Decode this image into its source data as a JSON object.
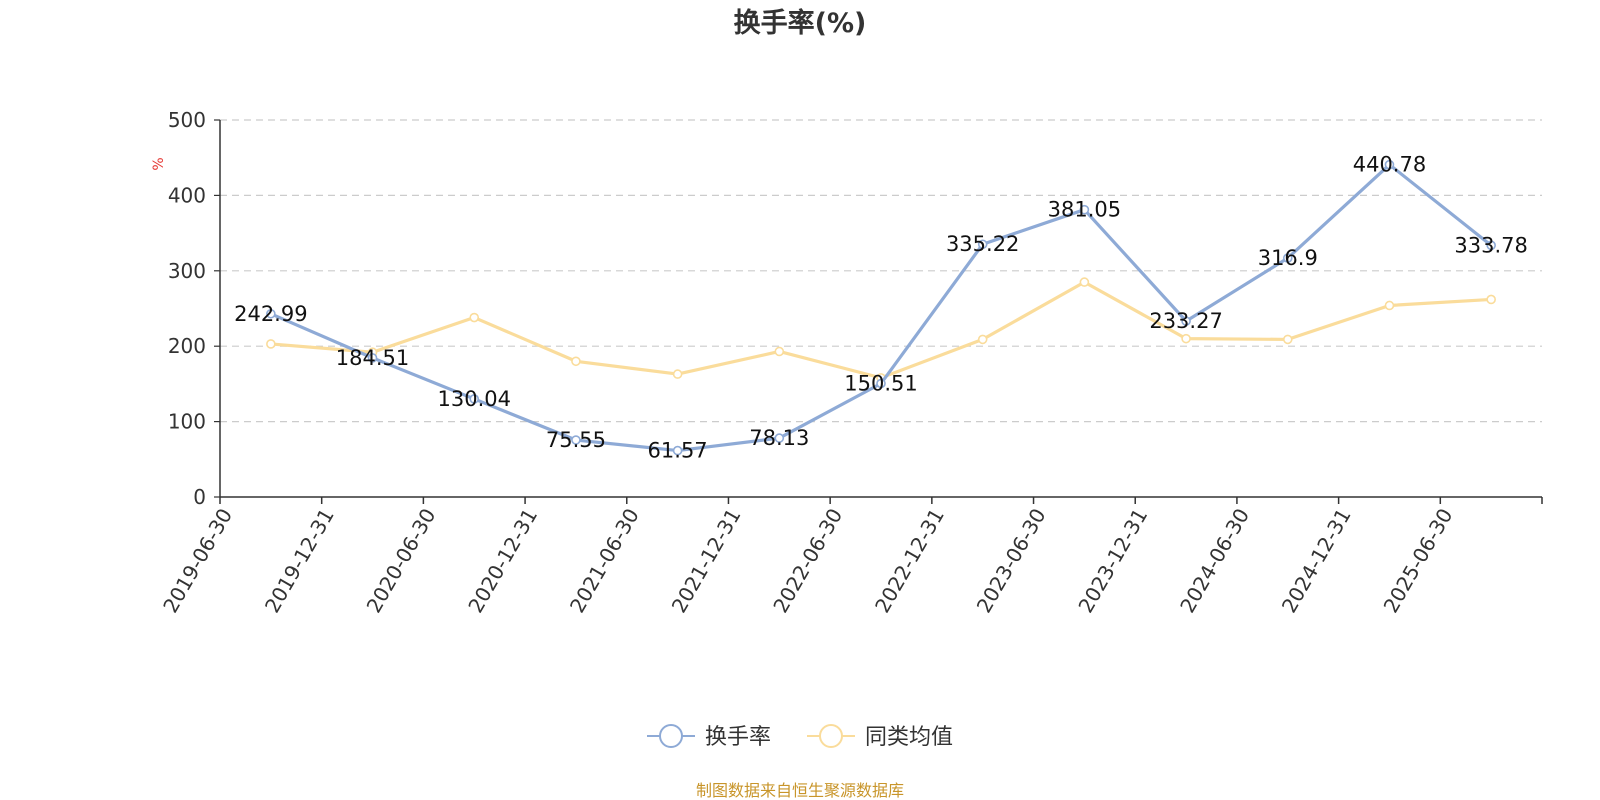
{
  "chart_data": {
    "type": "line",
    "title": "换手率(%)",
    "ylabel": "%",
    "xlabel": "",
    "ylim": [
      0,
      500
    ],
    "yticks": [
      0,
      100,
      200,
      300,
      400,
      500
    ],
    "grid": true,
    "legend_position": "bottom-center",
    "categories": [
      "2019-06-30",
      "2019-12-31",
      "2020-06-30",
      "2020-12-31",
      "2021-06-30",
      "2021-12-31",
      "2022-06-30",
      "2022-12-31",
      "2023-06-30",
      "2023-12-31",
      "2024-06-30",
      "2024-12-31",
      "2025-06-30"
    ],
    "series": [
      {
        "name": "换手率",
        "color": "#8eaad6",
        "show_labels": true,
        "values": [
          242.99,
          184.51,
          130.04,
          75.55,
          61.57,
          78.13,
          150.51,
          335.22,
          381.05,
          233.27,
          316.9,
          440.78,
          333.78
        ],
        "labels": [
          "242.99",
          "184.51",
          "130.04",
          "75.55",
          "61.57",
          "78.13",
          "150.51",
          "335.22",
          "381.05",
          "233.27",
          "316.9",
          "440.78",
          "333.78"
        ]
      },
      {
        "name": "同类均值",
        "color": "#fadc9b",
        "show_labels": false,
        "values": [
          203,
          192,
          238,
          180,
          163,
          193,
          158,
          209,
          285,
          210,
          209,
          254,
          262
        ]
      }
    ]
  },
  "footer": {
    "source_text": "制图数据来自恒生聚源数据库",
    "color": "#c8952a"
  },
  "colors": {
    "axis": "#333333",
    "grid": "#cccccc",
    "unit_label": "#e53935"
  }
}
